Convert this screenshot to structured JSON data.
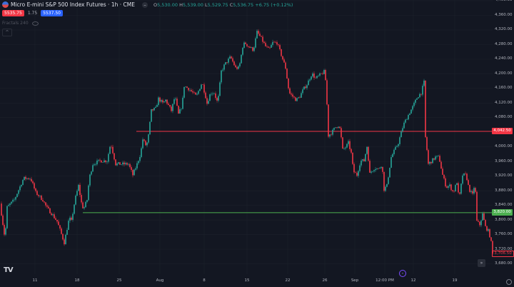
{
  "header": {
    "symbol_title": "Micro E-mini S&P 500 Index Futures · 1h · CME",
    "ohlc": {
      "o_label": "O",
      "o": "5,530.00",
      "h_label": "H",
      "h": "5,539.00",
      "l_label": "L",
      "l": "5,529.75",
      "c_label": "C",
      "c": "5,536.75",
      "change": "+6.75 (+0.12%)"
    },
    "sell_price": "5535.75",
    "spread": "1.75",
    "buy_price": "5537.50",
    "indicator": "Fractals 240",
    "collapse_icon": "chevron-up-icon"
  },
  "colors": {
    "background": "#131722",
    "up": "#26a69a",
    "down": "#f23645",
    "resistance": "#f23645",
    "support": "#4caf50",
    "buy": "#2962ff"
  },
  "chart_data": {
    "type": "candlestick",
    "timeframe": "1h",
    "ylim": [
      3617,
      4400
    ],
    "grid": true,
    "y_ticks": [
      "4,400.00",
      "4,360.00",
      "4,320.00",
      "4,280.00",
      "4,240.00",
      "4,200.00",
      "4,160.00",
      "4,120.00",
      "4,080.00",
      "4,000.00",
      "3,960.00",
      "3,920.00",
      "3,880.00",
      "3,840.00",
      "3,800.00",
      "3,760.00",
      "3,720.00",
      "3,680.00"
    ],
    "x_ticks": [
      {
        "bar": 98,
        "label": "11"
      },
      {
        "bar": 216,
        "label": "18"
      },
      {
        "bar": 334,
        "label": "25"
      },
      {
        "bar": 448,
        "label": "Aug"
      },
      {
        "bar": 572,
        "label": "8"
      },
      {
        "bar": 692,
        "label": "15"
      },
      {
        "bar": 806,
        "label": "22"
      },
      {
        "bar": 910,
        "label": "26"
      },
      {
        "bar": 994,
        "label": "Sep"
      },
      {
        "bar": 1078,
        "label": "12:00 PM"
      },
      {
        "bar": 1158,
        "label": "12"
      },
      {
        "bar": 1274,
        "label": "19"
      }
    ],
    "total_bars": 1380,
    "price_path": [
      [
        0,
        3845
      ],
      [
        14,
        3748
      ],
      [
        20,
        3835
      ],
      [
        40,
        3855
      ],
      [
        66,
        3914
      ],
      [
        86,
        3914
      ],
      [
        100,
        3875
      ],
      [
        120,
        3855
      ],
      [
        130,
        3835
      ],
      [
        146,
        3816
      ],
      [
        160,
        3796
      ],
      [
        180,
        3738
      ],
      [
        194,
        3806
      ],
      [
        200,
        3796
      ],
      [
        210,
        3855
      ],
      [
        220,
        3894
      ],
      [
        230,
        3835
      ],
      [
        236,
        3835
      ],
      [
        244,
        3855
      ],
      [
        250,
        3914
      ],
      [
        260,
        3953
      ],
      [
        280,
        3962
      ],
      [
        300,
        3962
      ],
      [
        310,
        4011
      ],
      [
        324,
        3953
      ],
      [
        340,
        3953
      ],
      [
        360,
        3953
      ],
      [
        372,
        3923
      ],
      [
        384,
        3953
      ],
      [
        394,
        3982
      ],
      [
        400,
        4021
      ],
      [
        410,
        4001
      ],
      [
        416,
        4031
      ],
      [
        424,
        4099
      ],
      [
        436,
        4105
      ],
      [
        444,
        4132
      ],
      [
        456,
        4119
      ],
      [
        464,
        4128
      ],
      [
        480,
        4099
      ],
      [
        490,
        4138
      ],
      [
        500,
        4089
      ],
      [
        510,
        4113
      ],
      [
        516,
        4167
      ],
      [
        530,
        4158
      ],
      [
        540,
        4148
      ],
      [
        550,
        4138
      ],
      [
        566,
        4177
      ],
      [
        576,
        4138
      ],
      [
        580,
        4119
      ],
      [
        590,
        4148
      ],
      [
        600,
        4148
      ],
      [
        610,
        4119
      ],
      [
        620,
        4207
      ],
      [
        630,
        4226
      ],
      [
        646,
        4246
      ],
      [
        660,
        4216
      ],
      [
        670,
        4216
      ],
      [
        680,
        4275
      ],
      [
        686,
        4285
      ],
      [
        696,
        4275
      ],
      [
        710,
        4265
      ],
      [
        720,
        4314
      ],
      [
        730,
        4300
      ],
      [
        744,
        4275
      ],
      [
        754,
        4265
      ],
      [
        764,
        4285
      ],
      [
        776,
        4285
      ],
      [
        790,
        4246
      ],
      [
        800,
        4216
      ],
      [
        810,
        4148
      ],
      [
        820,
        4138
      ],
      [
        830,
        4128
      ],
      [
        840,
        4138
      ],
      [
        850,
        4158
      ],
      [
        860,
        4171
      ],
      [
        874,
        4201
      ],
      [
        884,
        4187
      ],
      [
        910,
        4207
      ],
      [
        914,
        4158
      ],
      [
        920,
        4031
      ],
      [
        930,
        4040
      ],
      [
        940,
        4054
      ],
      [
        950,
        4060
      ],
      [
        954,
        4040
      ],
      [
        960,
        3992
      ],
      [
        970,
        4001
      ],
      [
        976,
        4011
      ],
      [
        984,
        3982
      ],
      [
        990,
        3933
      ],
      [
        1000,
        3923
      ],
      [
        1010,
        3962
      ],
      [
        1020,
        3962
      ],
      [
        1030,
        4011
      ],
      [
        1034,
        3923
      ],
      [
        1040,
        3933
      ],
      [
        1050,
        3943
      ],
      [
        1060,
        3939
      ],
      [
        1070,
        3953
      ],
      [
        1076,
        3884
      ],
      [
        1084,
        3894
      ],
      [
        1096,
        3972
      ],
      [
        1106,
        3992
      ],
      [
        1116,
        4011
      ],
      [
        1130,
        4060
      ],
      [
        1140,
        4080
      ],
      [
        1156,
        4109
      ],
      [
        1170,
        4138
      ],
      [
        1180,
        4148
      ],
      [
        1188,
        4177
      ],
      [
        1190,
        4040
      ],
      [
        1194,
        4011
      ],
      [
        1200,
        3953
      ],
      [
        1210,
        3962
      ],
      [
        1220,
        3972
      ],
      [
        1230,
        3972
      ],
      [
        1240,
        3923
      ],
      [
        1250,
        3890
      ],
      [
        1260,
        3894
      ],
      [
        1270,
        3875
      ],
      [
        1280,
        3904
      ],
      [
        1286,
        3855
      ],
      [
        1296,
        3923
      ],
      [
        1306,
        3923
      ],
      [
        1314,
        3884
      ],
      [
        1320,
        3875
      ],
      [
        1326,
        3865
      ],
      [
        1330,
        3914
      ],
      [
        1336,
        3796
      ],
      [
        1344,
        3787
      ],
      [
        1352,
        3816
      ],
      [
        1360,
        3781
      ],
      [
        1370,
        3767
      ],
      [
        1376,
        3738
      ],
      [
        1380,
        3706.5
      ]
    ],
    "horizontal_lines": [
      {
        "price": 4042.5,
        "label": "4,042.50",
        "color": "#f23645",
        "start_bar": 382
      },
      {
        "price": 3820,
        "label": "3,820.00",
        "color": "#4caf50",
        "start_bar": 232
      }
    ],
    "last_price_label": "3,706.50"
  },
  "footer": {
    "logo": "TV",
    "realtime_icon": "scroll-to-realtime-icon",
    "event_icon": "economic-event-icon",
    "settings_icon": "gear-icon"
  }
}
